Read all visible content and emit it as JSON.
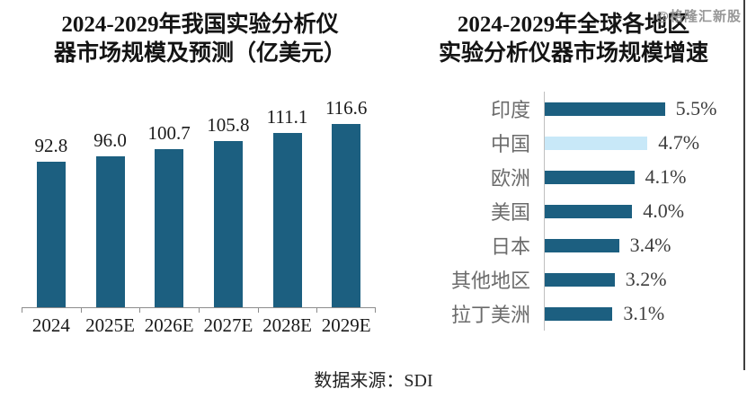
{
  "watermark": "@格隆汇新股",
  "source": "数据来源：SDI",
  "colors": {
    "bar": "#1C5F80",
    "highlight_bar": "#C8E8F8",
    "axis": "#8c8c8c"
  },
  "left_chart": {
    "title_line1": "2024-2029年我国实验分析仪",
    "title_line2": "器市场规模及预测（亿美元）"
  },
  "right_chart": {
    "title_line1": "2024-2029年全球各地区",
    "title_line2": "实验分析仪器市场规模增速"
  },
  "chart_data": [
    {
      "type": "bar",
      "orientation": "vertical",
      "title": "2024-2029年我国实验分析仪器市场规模及预测（亿美元）",
      "categories": [
        "2024",
        "2025E",
        "2026E",
        "2027E",
        "2028E",
        "2029E"
      ],
      "values": [
        92.8,
        96.0,
        100.7,
        105.8,
        111.1,
        116.6
      ],
      "value_labels": [
        "92.8",
        "96.0",
        "100.7",
        "105.8",
        "111.1",
        "116.6"
      ],
      "xlabel": "",
      "ylabel": "",
      "ylim": [
        0,
        140
      ],
      "grid": false,
      "legend": false
    },
    {
      "type": "bar",
      "orientation": "horizontal",
      "title": "2024-2029年全球各地区实验分析仪器市场规模增速",
      "categories": [
        "印度",
        "中国",
        "欧洲",
        "美国",
        "日本",
        "其他地区",
        "拉丁美洲"
      ],
      "values": [
        5.5,
        4.7,
        4.1,
        4.0,
        3.4,
        3.2,
        3.1
      ],
      "value_labels": [
        "5.5%",
        "4.7%",
        "4.1%",
        "4.0%",
        "3.4%",
        "3.2%",
        "3.1%"
      ],
      "highlighted_category": "中国",
      "xlabel": "",
      "ylabel": "",
      "xlim": [
        0,
        6
      ],
      "grid": false,
      "legend": false
    }
  ]
}
